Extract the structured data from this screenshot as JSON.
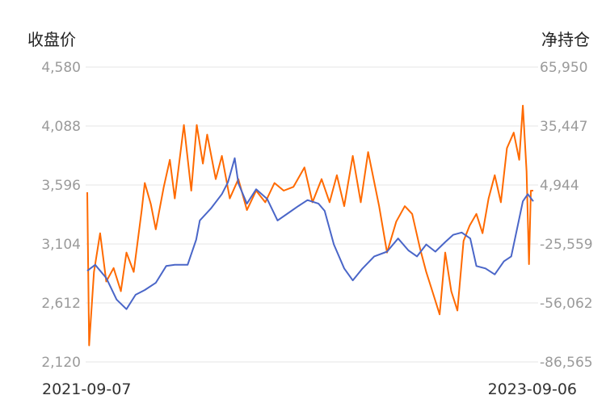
{
  "chart_data": {
    "type": "line",
    "left_axis_label": "收盘价",
    "right_axis_label": "净持仓",
    "left_ticks": [
      "4,580",
      "4,088",
      "3,596",
      "3,104",
      "2,612",
      "2,120"
    ],
    "right_ticks": [
      "65,950",
      "35,447",
      "4,944",
      "-25,559",
      "-56,062",
      "-86,565"
    ],
    "left_range": [
      2120,
      4580
    ],
    "right_range": [
      -86565,
      65950
    ],
    "x_start_label": "2021-09-07",
    "x_end_label": "2023-09-06",
    "x_range": [
      "2021-09-07",
      "2023-09-06"
    ],
    "grid": true,
    "colors": {
      "close_price": "#4a66c8",
      "net_position": "#ff6a00"
    },
    "series": [
      {
        "key": "close_price",
        "axis": "left",
        "points": [
          [
            "2021-09-07",
            2880
          ],
          [
            "2021-09-20",
            2930
          ],
          [
            "2021-10-08",
            2820
          ],
          [
            "2021-10-25",
            2640
          ],
          [
            "2021-11-10",
            2560
          ],
          [
            "2021-11-25",
            2680
          ],
          [
            "2021-12-10",
            2720
          ],
          [
            "2021-12-28",
            2780
          ],
          [
            "2022-01-14",
            2920
          ],
          [
            "2022-01-28",
            2930
          ],
          [
            "2022-02-18",
            2930
          ],
          [
            "2022-03-04",
            3140
          ],
          [
            "2022-03-10",
            3300
          ],
          [
            "2022-03-28",
            3400
          ],
          [
            "2022-04-15",
            3520
          ],
          [
            "2022-04-25",
            3620
          ],
          [
            "2022-05-06",
            3820
          ],
          [
            "2022-05-12",
            3610
          ],
          [
            "2022-05-26",
            3440
          ],
          [
            "2022-06-10",
            3560
          ],
          [
            "2022-06-28",
            3480
          ],
          [
            "2022-07-15",
            3300
          ],
          [
            "2022-08-01",
            3360
          ],
          [
            "2022-08-18",
            3420
          ],
          [
            "2022-09-02",
            3470
          ],
          [
            "2022-09-20",
            3440
          ],
          [
            "2022-09-30",
            3380
          ],
          [
            "2022-10-15",
            3100
          ],
          [
            "2022-11-01",
            2900
          ],
          [
            "2022-11-15",
            2800
          ],
          [
            "2022-12-01",
            2900
          ],
          [
            "2022-12-20",
            3000
          ],
          [
            "2023-01-10",
            3040
          ],
          [
            "2023-01-28",
            3150
          ],
          [
            "2023-02-14",
            3050
          ],
          [
            "2023-02-28",
            3000
          ],
          [
            "2023-03-15",
            3100
          ],
          [
            "2023-03-30",
            3040
          ],
          [
            "2023-04-15",
            3120
          ],
          [
            "2023-04-28",
            3180
          ],
          [
            "2023-05-12",
            3200
          ],
          [
            "2023-05-26",
            3150
          ],
          [
            "2023-06-05",
            2920
          ],
          [
            "2023-06-20",
            2900
          ],
          [
            "2023-07-05",
            2850
          ],
          [
            "2023-07-20",
            2960
          ],
          [
            "2023-08-01",
            3000
          ],
          [
            "2023-08-10",
            3220
          ],
          [
            "2023-08-20",
            3460
          ],
          [
            "2023-08-28",
            3520
          ],
          [
            "2023-09-06",
            3460
          ]
        ]
      },
      {
        "key": "net_position",
        "axis": "right",
        "points": [
          [
            "2021-09-07",
            1200
          ],
          [
            "2021-09-10",
            -78000
          ],
          [
            "2021-09-18",
            -40000
          ],
          [
            "2021-09-28",
            -20000
          ],
          [
            "2021-10-08",
            -45000
          ],
          [
            "2021-10-20",
            -38000
          ],
          [
            "2021-11-01",
            -50000
          ],
          [
            "2021-11-10",
            -30000
          ],
          [
            "2021-11-22",
            -40000
          ],
          [
            "2021-12-05",
            -8000
          ],
          [
            "2021-12-10",
            6000
          ],
          [
            "2021-12-20",
            -5000
          ],
          [
            "2021-12-28",
            -18000
          ],
          [
            "2022-01-10",
            4000
          ],
          [
            "2022-01-20",
            18000
          ],
          [
            "2022-01-28",
            -2000
          ],
          [
            "2022-02-12",
            36000
          ],
          [
            "2022-02-24",
            2000
          ],
          [
            "2022-03-05",
            36000
          ],
          [
            "2022-03-15",
            16000
          ],
          [
            "2022-03-22",
            31000
          ],
          [
            "2022-04-05",
            8000
          ],
          [
            "2022-04-15",
            20000
          ],
          [
            "2022-04-28",
            -2000
          ],
          [
            "2022-05-12",
            8000
          ],
          [
            "2022-05-26",
            -8000
          ],
          [
            "2022-06-10",
            2000
          ],
          [
            "2022-06-25",
            -4000
          ],
          [
            "2022-07-10",
            6000
          ],
          [
            "2022-07-25",
            2000
          ],
          [
            "2022-08-10",
            4000
          ],
          [
            "2022-08-28",
            14000
          ],
          [
            "2022-09-10",
            -4000
          ],
          [
            "2022-09-25",
            8000
          ],
          [
            "2022-10-08",
            -4000
          ],
          [
            "2022-10-20",
            10000
          ],
          [
            "2022-11-01",
            -6000
          ],
          [
            "2022-11-15",
            20000
          ],
          [
            "2022-11-28",
            -4000
          ],
          [
            "2022-12-10",
            22000
          ],
          [
            "2022-12-28",
            -6000
          ],
          [
            "2023-01-10",
            -30000
          ],
          [
            "2023-01-25",
            -14000
          ],
          [
            "2023-02-08",
            -6000
          ],
          [
            "2023-02-20",
            -10000
          ],
          [
            "2023-03-05",
            -28000
          ],
          [
            "2023-03-15",
            -40000
          ],
          [
            "2023-03-25",
            -50000
          ],
          [
            "2023-04-06",
            -62000
          ],
          [
            "2023-04-15",
            -30000
          ],
          [
            "2023-04-25",
            -50000
          ],
          [
            "2023-05-05",
            -60000
          ],
          [
            "2023-05-15",
            -24000
          ],
          [
            "2023-05-25",
            -16000
          ],
          [
            "2023-06-05",
            -10000
          ],
          [
            "2023-06-15",
            -20000
          ],
          [
            "2023-06-25",
            -2000
          ],
          [
            "2023-07-05",
            10000
          ],
          [
            "2023-07-15",
            -4000
          ],
          [
            "2023-07-25",
            24000
          ],
          [
            "2023-08-05",
            32000
          ],
          [
            "2023-08-14",
            18000
          ],
          [
            "2023-08-20",
            46000
          ],
          [
            "2023-08-26",
            12000
          ],
          [
            "2023-08-30",
            -36000
          ],
          [
            "2023-09-02",
            2000
          ],
          [
            "2023-09-06",
            2000
          ]
        ]
      }
    ]
  }
}
